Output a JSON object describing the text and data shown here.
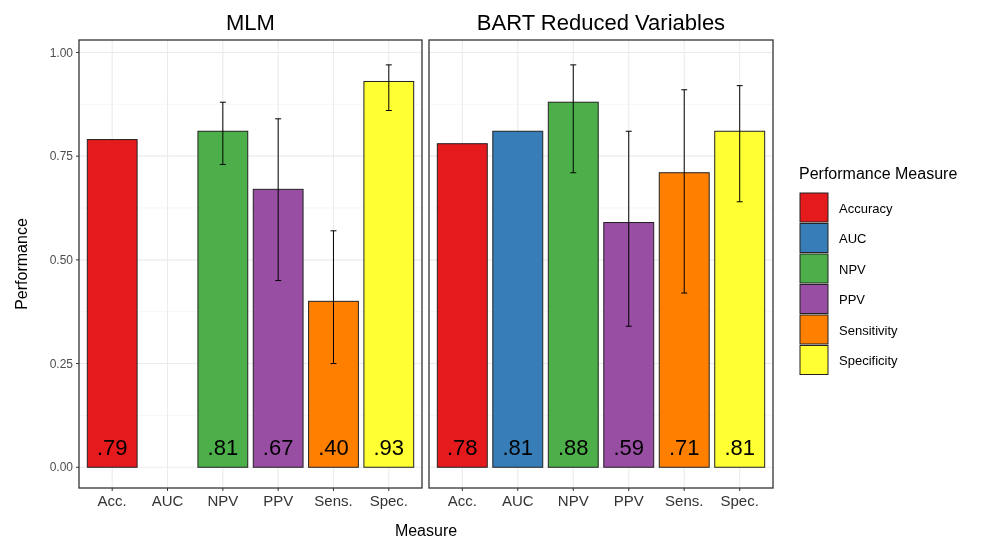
{
  "chart_data": [
    {
      "type": "bar",
      "title": "MLM",
      "ylabel": "Performance",
      "categories": [
        "Acc.",
        "AUC",
        "NPV",
        "PPV",
        "Sens.",
        "Spec."
      ],
      "ylim": [
        -0.05,
        1.03
      ],
      "yticks": [
        {
          "value": 0,
          "label": "0.00"
        },
        {
          "value": 0.25,
          "label": "0.25"
        },
        {
          "value": 0.5,
          "label": "0.50"
        },
        {
          "value": 0.75,
          "label": "0.75"
        },
        {
          "value": 1,
          "label": "1.00"
        }
      ],
      "grid": true,
      "legend": false,
      "series": [
        {
          "color": "#e41a1c",
          "values": [
            0.79,
            null,
            null,
            null,
            null,
            null
          ],
          "value_labels": [
            ".79",
            null,
            null,
            null,
            null,
            null
          ]
        },
        {
          "color": "#4daf4a",
          "values": [
            null,
            null,
            0.81,
            null,
            null,
            null
          ],
          "errors": [
            null,
            null,
            [
              0.73,
              0.88
            ],
            null,
            null,
            null
          ],
          "value_labels": [
            null,
            null,
            ".81",
            null,
            null,
            null
          ]
        },
        {
          "color": "#984ea3",
          "values": [
            null,
            null,
            null,
            0.67,
            null,
            null
          ],
          "errors": [
            null,
            null,
            null,
            [
              0.45,
              0.84
            ],
            null,
            null
          ],
          "value_labels": [
            null,
            null,
            null,
            ".67",
            null,
            null
          ]
        },
        {
          "color": "#ff7f00",
          "values": [
            null,
            null,
            null,
            null,
            0.4,
            null
          ],
          "errors": [
            null,
            null,
            null,
            null,
            [
              0.25,
              0.57
            ],
            null
          ],
          "value_labels": [
            null,
            null,
            null,
            null,
            ".40",
            null
          ]
        },
        {
          "color": "#ffff33",
          "values": [
            null,
            null,
            null,
            null,
            null,
            0.93
          ],
          "errors": [
            null,
            null,
            null,
            null,
            null,
            [
              0.86,
              0.97
            ]
          ],
          "value_labels": [
            null,
            null,
            null,
            null,
            null,
            ".93"
          ]
        }
      ]
    },
    {
      "type": "bar",
      "title": "BART Reduced Variables",
      "xlabel": "Measure",
      "legend_title": "Performance Measure",
      "categories": [
        "Acc.",
        "AUC",
        "NPV",
        "PPV",
        "Sens.",
        "Spec."
      ],
      "ylim": [
        -0.05,
        1.03
      ],
      "yticks": [
        {
          "value": 0,
          "label": null
        },
        {
          "value": 0.25,
          "label": null
        },
        {
          "value": 0.5,
          "label": null
        },
        {
          "value": 0.75,
          "label": null
        },
        {
          "value": 1,
          "label": null
        }
      ],
      "tick_labels": "x",
      "grid": true,
      "legend": "right",
      "series": [
        {
          "name": "Accuracy",
          "color": "#e41a1c",
          "values": [
            0.78,
            null,
            null,
            null,
            null,
            null
          ],
          "value_labels": [
            ".78",
            null,
            null,
            null,
            null,
            null
          ]
        },
        {
          "name": "AUC",
          "color": "#377eb8",
          "values": [
            null,
            0.81,
            null,
            null,
            null,
            null
          ],
          "value_labels": [
            null,
            ".81",
            null,
            null,
            null,
            null
          ]
        },
        {
          "name": "NPV",
          "color": "#4daf4a",
          "values": [
            null,
            null,
            0.88,
            null,
            null,
            null
          ],
          "errors": [
            null,
            null,
            [
              0.71,
              0.97
            ],
            null,
            null,
            null
          ],
          "value_labels": [
            null,
            null,
            ".88",
            null,
            null,
            null
          ]
        },
        {
          "name": "PPV",
          "color": "#984ea3",
          "values": [
            null,
            null,
            null,
            0.59,
            null,
            null
          ],
          "errors": [
            null,
            null,
            null,
            [
              0.34,
              0.81
            ],
            null,
            null
          ],
          "value_labels": [
            null,
            null,
            null,
            ".59",
            null,
            null
          ]
        },
        {
          "name": "Sensitivity",
          "color": "#ff7f00",
          "values": [
            null,
            null,
            null,
            null,
            0.71,
            null
          ],
          "errors": [
            null,
            null,
            null,
            null,
            [
              0.42,
              0.91
            ],
            null
          ],
          "value_labels": [
            null,
            null,
            null,
            null,
            ".71",
            null
          ]
        },
        {
          "name": "Specificity",
          "color": "#ffff33",
          "values": [
            null,
            null,
            null,
            null,
            null,
            0.81
          ],
          "errors": [
            null,
            null,
            null,
            null,
            null,
            [
              0.64,
              0.92
            ]
          ],
          "value_labels": [
            null,
            null,
            null,
            null,
            null,
            ".81"
          ]
        }
      ]
    }
  ]
}
